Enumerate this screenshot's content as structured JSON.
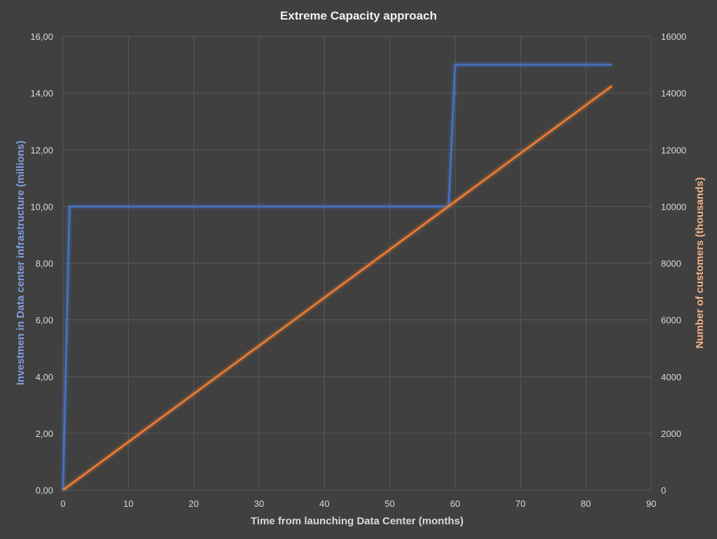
{
  "chart_data": {
    "type": "line",
    "title": "Extreme Capacity approach",
    "xlabel": "Time from launching Data Center (months)",
    "ylabel_left": "Investmen in Data center infrastructure (millions)",
    "ylabel_right": "Number of customers (thousands)",
    "xlim": [
      0,
      90
    ],
    "ylim_left": [
      0,
      16
    ],
    "ylim_right": [
      0,
      16000
    ],
    "x_ticks": [
      "0",
      "10",
      "20",
      "30",
      "40",
      "50",
      "60",
      "70",
      "80",
      "90"
    ],
    "y_left_ticks": [
      "0,00",
      "2,00",
      "4,00",
      "6,00",
      "8,00",
      "10,00",
      "12,00",
      "14,00",
      "16,00"
    ],
    "y_right_ticks": [
      "0",
      "2000",
      "4000",
      "6000",
      "8000",
      "10000",
      "12000",
      "14000",
      "16000"
    ],
    "grid": true,
    "series": [
      {
        "axis": "left",
        "color": "#4472c4",
        "points": [
          [
            0,
            0
          ],
          [
            1,
            10
          ],
          [
            59,
            10
          ],
          [
            60,
            15
          ],
          [
            84,
            15
          ]
        ]
      },
      {
        "axis": "right",
        "color": "#ed7d31",
        "points": [
          [
            0,
            0
          ],
          [
            84,
            14250
          ]
        ]
      }
    ]
  },
  "colors": {
    "background": "#404040",
    "left_axis_label": "#7f9fdc",
    "right_axis_label": "#f4b183"
  }
}
